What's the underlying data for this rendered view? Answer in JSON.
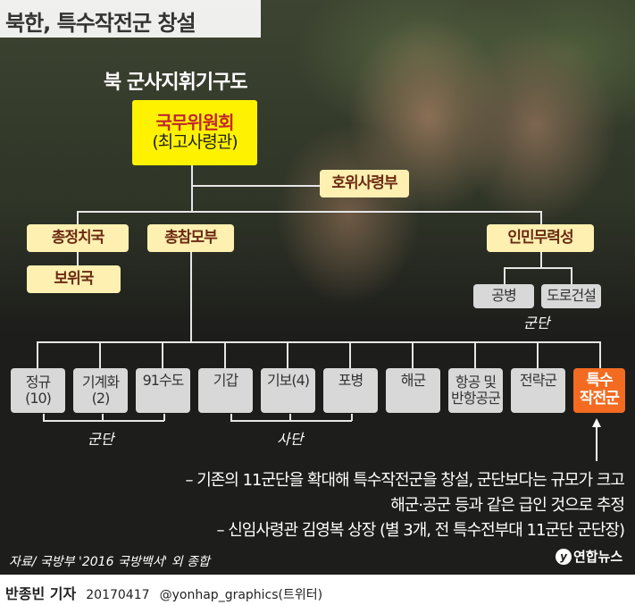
{
  "title": "북한, 특수작전군 창설",
  "subtitle": "북 군사지휘기구도",
  "top": {
    "name": "국무위원회",
    "sub": "(최고사령관)"
  },
  "guard": "호위사령부",
  "level2": [
    "총정치국",
    "총참모부",
    "인민무력성"
  ],
  "security": "보위국",
  "ministry_units": [
    "공병",
    "도로건설"
  ],
  "ministry_units_label": "군단",
  "units": [
    {
      "l1": "정규",
      "l2": "(10)"
    },
    {
      "l1": "기계화",
      "l2": "(2)"
    },
    {
      "l1": "91수도",
      "l2": ""
    },
    {
      "l1": "기갑",
      "l2": ""
    },
    {
      "l1": "기보(4)",
      "l2": ""
    },
    {
      "l1": "포병",
      "l2": ""
    },
    {
      "l1": "해군",
      "l2": ""
    },
    {
      "l1": "항공 및",
      "l2": "반항공군"
    },
    {
      "l1": "전략군",
      "l2": ""
    },
    {
      "l1": "특수",
      "l2": "작전군"
    }
  ],
  "group_labels": {
    "corps": "군단",
    "division": "사단"
  },
  "notes": [
    "– 기존의 11군단을 확대해 특수작전군을 창설, 군단보다는 규모가 크고",
    "해군·공군 등과 같은 급인 것으로 추정",
    "– 신임사령관 김영복 상장 (별 3개, 전 특수전부대 11군단 군단장)"
  ],
  "source": "자료/ 국방부 '2016 국방백서' 외 종합",
  "logo": "연합뉴스",
  "footer": {
    "author": "반종빈 기자",
    "date": "20170417",
    "handle": "@yonhap_graphics(트위터)"
  },
  "colors": {
    "highlight": "#f26b21",
    "top": "#fff200",
    "level2": "#fdf0b0",
    "unit": "#d8d8d8"
  }
}
